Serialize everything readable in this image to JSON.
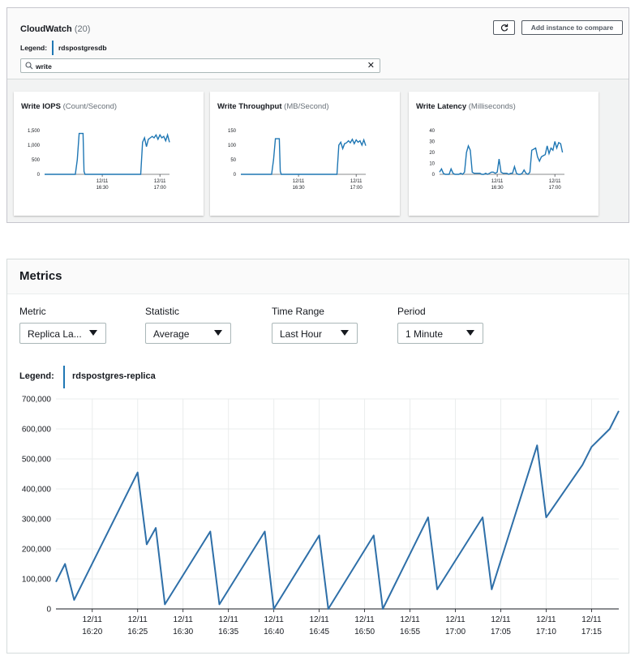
{
  "cloudwatch": {
    "title": "CloudWatch",
    "count": "(20)",
    "legend_label": "Legend:",
    "legend_series": "rdspostgresdb",
    "refresh_icon": "refresh-icon",
    "add_instance_label": "Add instance to compare",
    "search": {
      "value": "write",
      "placeholder": "",
      "icon": "search-icon",
      "clear_icon": "close-icon"
    }
  },
  "mini_charts": [
    {
      "title": "Write IOPS",
      "unit": "(Count/Second)",
      "chart_data": {
        "type": "line",
        "title": "Write IOPS (Count/Second)",
        "yticks": [
          "1,500",
          "1,000",
          "500",
          "0"
        ],
        "ylim": [
          0,
          1500
        ],
        "xticks": [
          {
            "t": 30,
            "line1": "12/11",
            "line2": "16:30"
          },
          {
            "t": 60,
            "line1": "12/11",
            "line2": "17:00"
          }
        ],
        "x": [
          0,
          2,
          4,
          6,
          8,
          10,
          12,
          14,
          16,
          17,
          18,
          19,
          20,
          20.5,
          21,
          22,
          24,
          26,
          28,
          30,
          32,
          34,
          36,
          38,
          40,
          42,
          44,
          46,
          48,
          50,
          51,
          52,
          53,
          54,
          55,
          56,
          57,
          58,
          59,
          60,
          61,
          62,
          63,
          64,
          65
        ],
        "values": [
          0,
          0,
          0,
          0,
          0,
          0,
          0,
          0,
          0,
          500,
          1400,
          1400,
          1400,
          100,
          0,
          0,
          0,
          0,
          0,
          0,
          0,
          0,
          0,
          0,
          0,
          0,
          0,
          0,
          0,
          0,
          1100,
          1250,
          950,
          1200,
          1250,
          1300,
          1250,
          1350,
          1200,
          1350,
          1250,
          1300,
          1150,
          1350,
          1100
        ],
        "color": "#1f77b4"
      }
    },
    {
      "title": "Write Throughput",
      "unit": "(MB/Second)",
      "chart_data": {
        "type": "line",
        "title": "Write Throughput (MB/Second)",
        "yticks": [
          "150",
          "100",
          "50",
          "0"
        ],
        "ylim": [
          0,
          150
        ],
        "xticks": [
          {
            "t": 30,
            "line1": "12/11",
            "line2": "16:30"
          },
          {
            "t": 60,
            "line1": "12/11",
            "line2": "17:00"
          }
        ],
        "x": [
          0,
          2,
          4,
          6,
          8,
          10,
          12,
          14,
          16,
          17,
          18,
          19,
          20,
          20.5,
          21,
          22,
          24,
          26,
          28,
          30,
          32,
          34,
          36,
          38,
          40,
          42,
          44,
          46,
          48,
          50,
          51,
          52,
          53,
          54,
          55,
          56,
          57,
          58,
          59,
          60,
          61,
          62,
          63,
          64,
          65
        ],
        "values": [
          0,
          0,
          0,
          0,
          0,
          0,
          0,
          0,
          0,
          50,
          122,
          122,
          122,
          10,
          0,
          0,
          0,
          0,
          0,
          0,
          0,
          0,
          0,
          0,
          0,
          0,
          0,
          0,
          0,
          0,
          100,
          110,
          88,
          105,
          108,
          115,
          108,
          120,
          105,
          118,
          110,
          115,
          100,
          118,
          98
        ],
        "color": "#1f77b4"
      }
    },
    {
      "title": "Write Latency",
      "unit": "(Milliseconds)",
      "chart_data": {
        "type": "line",
        "title": "Write Latency (Milliseconds)",
        "yticks": [
          "40",
          "30",
          "20",
          "10",
          "0"
        ],
        "ylim": [
          0,
          40
        ],
        "xticks": [
          {
            "t": 30,
            "line1": "12/11",
            "line2": "16:30"
          },
          {
            "t": 60,
            "line1": "12/11",
            "line2": "17:00"
          }
        ],
        "x": [
          0,
          1,
          2,
          3,
          4,
          5,
          6,
          7,
          8,
          9,
          10,
          11,
          12,
          13,
          14,
          15,
          16,
          17,
          18,
          19,
          20,
          21,
          22,
          23,
          24,
          25,
          26,
          27,
          28,
          29,
          30,
          31,
          32,
          33,
          34,
          35,
          36,
          37,
          38,
          39,
          40,
          41,
          42,
          43,
          44,
          45,
          46,
          47,
          48,
          49,
          50,
          51,
          52,
          53,
          54,
          55,
          56,
          57,
          58,
          59,
          60,
          61,
          62,
          63,
          64
        ],
        "values": [
          2,
          5,
          1,
          0,
          0,
          0,
          5,
          1,
          0,
          0,
          0,
          1,
          0,
          2,
          20,
          26,
          22,
          2,
          1,
          1,
          1,
          1,
          0,
          0,
          1,
          0,
          1,
          2,
          2,
          1,
          2,
          14,
          2,
          1,
          1,
          1,
          0,
          1,
          1,
          7,
          1,
          0,
          0,
          1,
          4,
          1,
          0,
          2,
          22,
          23,
          24,
          16,
          12,
          16,
          17,
          18,
          26,
          19,
          24,
          22,
          30,
          24,
          29,
          28,
          20
        ],
        "color": "#1f77b4"
      }
    }
  ],
  "metrics": {
    "title": "Metrics",
    "filters": [
      {
        "label": "Metric",
        "value": "Replica La..."
      },
      {
        "label": "Statistic",
        "value": "Average"
      },
      {
        "label": "Time Range",
        "value": "Last Hour"
      },
      {
        "label": "Period",
        "value": "1 Minute"
      }
    ],
    "legend_label": "Legend:",
    "legend_series": "rdspostgres-replica"
  },
  "chart_data": {
    "type": "line",
    "title": "",
    "series": [
      {
        "name": "rdspostgres-replica",
        "color": "#2e6fa8",
        "x": [
          0,
          1,
          2,
          9,
          10,
          11,
          12,
          17,
          18,
          23,
          24,
          29,
          30,
          35,
          36,
          41,
          42,
          47,
          48,
          53,
          54,
          58,
          59,
          61,
          62
        ],
        "values": [
          90000,
          150000,
          30000,
          455000,
          215000,
          270000,
          15000,
          258000,
          15000,
          258000,
          0,
          245000,
          0,
          245000,
          0,
          305000,
          65000,
          305000,
          65000,
          545000,
          305000,
          480000,
          540000,
          600000,
          660000
        ]
      }
    ],
    "x_unit": "minutes after 16:16",
    "xlim": [
      0,
      62
    ],
    "ylim": [
      0,
      700000
    ],
    "yticks": [
      "700,000",
      "600,000",
      "500,000",
      "400,000",
      "300,000",
      "200,000",
      "100,000",
      "0"
    ],
    "xticks": [
      {
        "t": 4,
        "line1": "12/11",
        "line2": "16:20"
      },
      {
        "t": 9,
        "line1": "12/11",
        "line2": "16:25"
      },
      {
        "t": 14,
        "line1": "12/11",
        "line2": "16:30"
      },
      {
        "t": 19,
        "line1": "12/11",
        "line2": "16:35"
      },
      {
        "t": 24,
        "line1": "12/11",
        "line2": "16:40"
      },
      {
        "t": 29,
        "line1": "12/11",
        "line2": "16:45"
      },
      {
        "t": 34,
        "line1": "12/11",
        "line2": "16:50"
      },
      {
        "t": 39,
        "line1": "12/11",
        "line2": "16:55"
      },
      {
        "t": 44,
        "line1": "12/11",
        "line2": "17:00"
      },
      {
        "t": 49,
        "line1": "12/11",
        "line2": "17:05"
      },
      {
        "t": 54,
        "line1": "12/11",
        "line2": "17:10"
      },
      {
        "t": 59,
        "line1": "12/11",
        "line2": "17:15"
      }
    ],
    "grid": true,
    "legend": "top-left"
  }
}
